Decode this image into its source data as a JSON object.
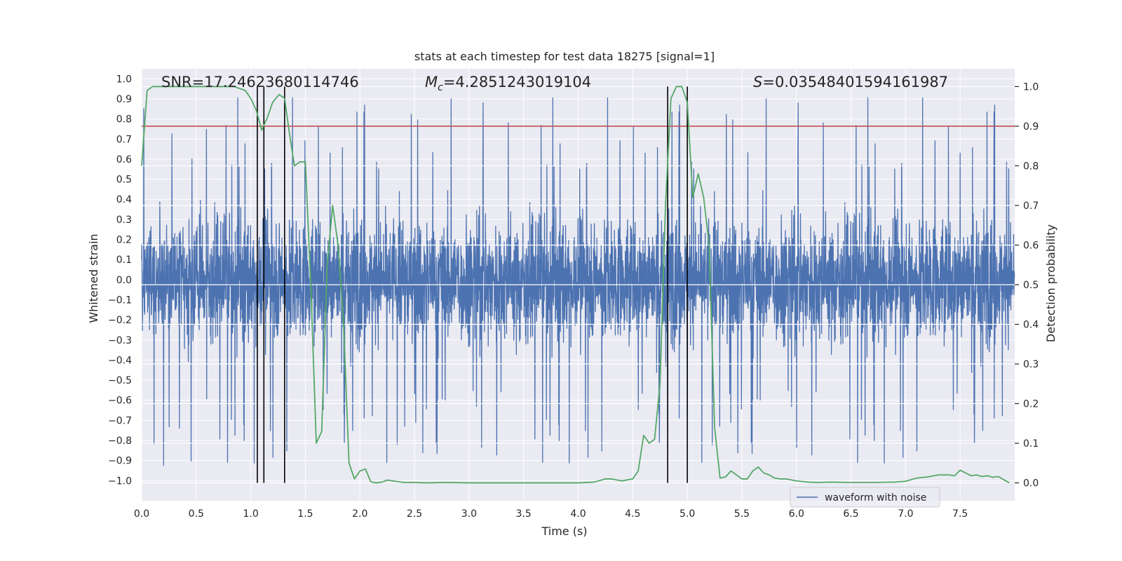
{
  "chart_data": {
    "type": "line",
    "title": "stats at each timestep for test data 18275 [signal=1]",
    "xlabel": "Time (s)",
    "ylabel": "Whitened strain",
    "y2label": "Detection probability",
    "xlim": [
      0.0,
      8.0
    ],
    "ylim": [
      -1.1,
      1.05
    ],
    "y2lim": [
      -0.045,
      1.045
    ],
    "xticks": [
      0.0,
      0.5,
      1.0,
      1.5,
      2.0,
      2.5,
      3.0,
      3.5,
      4.0,
      4.5,
      5.0,
      5.5,
      6.0,
      6.5,
      7.0,
      7.5
    ],
    "xtick_labels": [
      "0.0",
      "0.5",
      "1.0",
      "1.5",
      "2.0",
      "2.5",
      "3.0",
      "3.5",
      "4.0",
      "4.5",
      "5.0",
      "5.5",
      "6.0",
      "6.5",
      "7.0",
      "7.5"
    ],
    "yticks": [
      1.0,
      0.9,
      0.8,
      0.7,
      0.6,
      0.5,
      0.4,
      0.3,
      0.2,
      0.1,
      0.0,
      -0.1,
      -0.2,
      -0.3,
      -0.4,
      -0.5,
      -0.6,
      -0.7,
      -0.8,
      -0.9,
      -1.0
    ],
    "ytick_labels": [
      "1.0",
      "0.9",
      "0.8",
      "0.7",
      "0.6",
      "0.5",
      "0.4",
      "0.3",
      "0.2",
      "0.1",
      "0.0",
      "−0.1",
      "−0.2",
      "−0.3",
      "−0.4",
      "−0.5",
      "−0.6",
      "−0.7",
      "−0.8",
      "−0.9",
      "−1.0"
    ],
    "y2ticks": [
      1.0,
      0.9,
      0.8,
      0.7,
      0.6,
      0.5,
      0.4,
      0.3,
      0.2,
      0.1,
      0.0
    ],
    "y2tick_labels": [
      "1.0",
      "0.9",
      "0.8",
      "0.7",
      "0.6",
      "0.5",
      "0.4",
      "0.3",
      "0.2",
      "0.1",
      "0.0"
    ],
    "grid": true,
    "legend": {
      "placement": "lower-right",
      "entries": [
        "waveform with noise"
      ]
    },
    "annotations": {
      "snr": "SNR=17.24623680114746",
      "mc_symbol": "M",
      "mc_sub": "c",
      "mc_value": "=4.2851243019104",
      "s_symbol": "S",
      "s_value": "=0.03548401594161987"
    },
    "strain_series": {
      "name": "waveform with noise",
      "t_start": 0.0,
      "t_end": 8.0,
      "n_samples": 4096,
      "envelope_amplitude": 0.45,
      "max": 0.95,
      "min": -0.98
    },
    "threshold": {
      "y2": 0.9
    },
    "vertical_markers_x": [
      1.06,
      1.12,
      1.31,
      4.82,
      5.0
    ],
    "detection_probability": {
      "x": [
        0.0,
        0.05,
        0.1,
        0.2,
        0.3,
        0.5,
        0.7,
        0.85,
        0.95,
        1.0,
        1.05,
        1.1,
        1.15,
        1.2,
        1.26,
        1.31,
        1.35,
        1.4,
        1.45,
        1.5,
        1.55,
        1.6,
        1.65,
        1.7,
        1.75,
        1.8,
        1.85,
        1.9,
        1.95,
        2.0,
        2.05,
        2.1,
        2.15,
        2.2,
        2.25,
        2.3,
        2.4,
        2.5,
        2.6,
        2.8,
        3.0,
        3.5,
        4.0,
        4.15,
        4.25,
        4.3,
        4.4,
        4.5,
        4.55,
        4.6,
        4.65,
        4.7,
        4.75,
        4.8,
        4.85,
        4.9,
        4.95,
        5.0,
        5.05,
        5.1,
        5.15,
        5.2,
        5.25,
        5.3,
        5.35,
        5.4,
        5.45,
        5.5,
        5.55,
        5.6,
        5.65,
        5.7,
        5.75,
        5.8,
        5.85,
        5.9,
        6.0,
        6.1,
        6.2,
        6.3,
        6.5,
        6.7,
        6.9,
        7.0,
        7.1,
        7.2,
        7.3,
        7.4,
        7.45,
        7.5,
        7.55,
        7.6,
        7.65,
        7.7,
        7.75,
        7.8,
        7.85,
        7.9,
        7.95
      ],
      "y": [
        0.8,
        0.99,
        1.0,
        1.0,
        1.0,
        1.0,
        1.0,
        1.0,
        0.99,
        0.97,
        0.94,
        0.89,
        0.92,
        0.96,
        0.98,
        0.97,
        0.89,
        0.8,
        0.81,
        0.81,
        0.5,
        0.1,
        0.13,
        0.55,
        0.7,
        0.6,
        0.4,
        0.05,
        0.01,
        0.03,
        0.035,
        0.003,
        0.0,
        0.002,
        0.007,
        0.005,
        0.001,
        0.001,
        0.0,
        0.001,
        0.0,
        0.0,
        0.0,
        0.002,
        0.01,
        0.01,
        0.005,
        0.01,
        0.03,
        0.12,
        0.1,
        0.11,
        0.25,
        0.7,
        0.97,
        1.0,
        1.0,
        0.96,
        0.72,
        0.78,
        0.72,
        0.6,
        0.14,
        0.012,
        0.015,
        0.03,
        0.02,
        0.01,
        0.01,
        0.03,
        0.04,
        0.025,
        0.02,
        0.012,
        0.01,
        0.01,
        0.005,
        0.002,
        0.001,
        0.002,
        0.001,
        0.001,
        0.002,
        0.004,
        0.012,
        0.015,
        0.02,
        0.02,
        0.018,
        0.032,
        0.025,
        0.018,
        0.02,
        0.016,
        0.018,
        0.014,
        0.016,
        0.008,
        0.0
      ]
    },
    "colors": {
      "background": "#eaeaf2",
      "grid": "#ffffff",
      "strain": "#4c72b0",
      "probability": "#55a868",
      "threshold": "#c44e52",
      "markers": "#000000",
      "text": "#262626"
    }
  }
}
